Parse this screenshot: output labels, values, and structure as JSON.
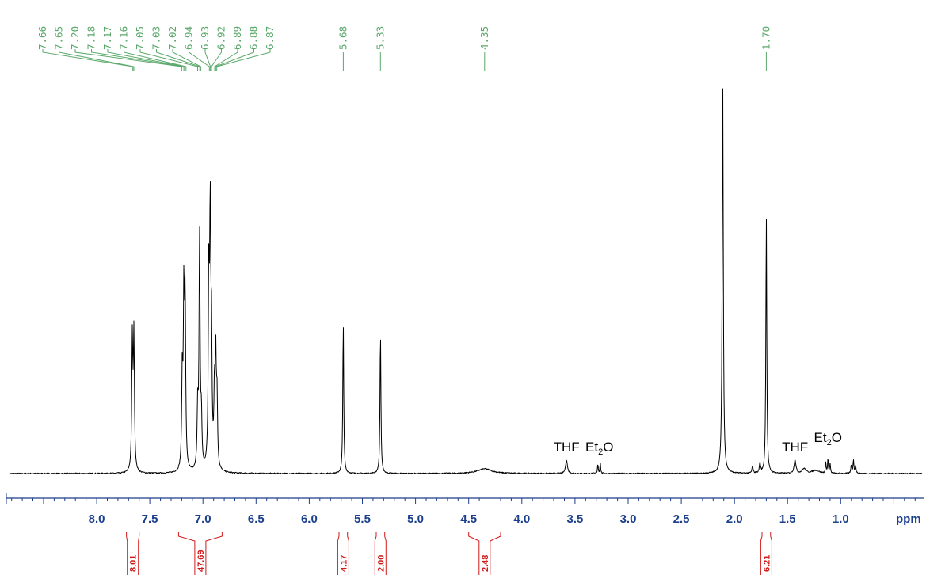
{
  "chart_data": {
    "type": "line",
    "x_unit": "ppm",
    "x_reversed": true,
    "xlim": [
      8.85,
      0.22
    ],
    "ticks": [
      8.0,
      7.5,
      7.0,
      6.5,
      6.0,
      5.5,
      5.0,
      4.5,
      4.0,
      3.5,
      3.0,
      2.5,
      2.0,
      1.5,
      1.0
    ],
    "tick_labels": [
      "8.0",
      "7.5",
      "7.0",
      "6.5",
      "6.0",
      "5.5",
      "5.0",
      "4.5",
      "4.0",
      "3.5",
      "3.0",
      "2.5",
      "2.0",
      "1.5",
      "1.0"
    ],
    "peak_labels": [
      "7.66",
      "7.65",
      "7.20",
      "7.18",
      "7.17",
      "7.16",
      "7.05",
      "7.03",
      "7.02",
      "6.94",
      "6.93",
      "6.92",
      "6.89",
      "6.88",
      "6.87",
      "5.68",
      "5.33",
      "4.35",
      "1.70"
    ],
    "peaks": [
      {
        "ppm": 7.665,
        "height": 0.33,
        "width": 0.006
      },
      {
        "ppm": 7.65,
        "height": 0.34,
        "width": 0.006
      },
      {
        "ppm": 7.195,
        "height": 0.23,
        "width": 0.006
      },
      {
        "ppm": 7.18,
        "height": 0.42,
        "width": 0.006
      },
      {
        "ppm": 7.168,
        "height": 0.41,
        "width": 0.006
      },
      {
        "ppm": 7.05,
        "height": 0.15,
        "width": 0.006
      },
      {
        "ppm": 7.032,
        "height": 0.59,
        "width": 0.006
      },
      {
        "ppm": 7.015,
        "height": 0.12,
        "width": 0.006
      },
      {
        "ppm": 6.945,
        "height": 0.47,
        "width": 0.006
      },
      {
        "ppm": 6.932,
        "height": 0.6,
        "width": 0.006
      },
      {
        "ppm": 6.92,
        "height": 0.3,
        "width": 0.006
      },
      {
        "ppm": 6.892,
        "height": 0.18,
        "width": 0.006
      },
      {
        "ppm": 6.88,
        "height": 0.27,
        "width": 0.006
      },
      {
        "ppm": 6.868,
        "height": 0.17,
        "width": 0.006
      },
      {
        "ppm": 5.68,
        "height": 0.385,
        "width": 0.005
      },
      {
        "ppm": 5.33,
        "height": 0.36,
        "width": 0.005
      },
      {
        "ppm": 4.35,
        "height": 0.012,
        "width": 0.08
      },
      {
        "ppm": 3.58,
        "height": 0.035,
        "width": 0.01
      },
      {
        "ppm": 3.285,
        "height": 0.025,
        "width": 0.004
      },
      {
        "ppm": 3.262,
        "height": 0.028,
        "width": 0.004
      },
      {
        "ppm": 2.11,
        "height": 0.99,
        "width": 0.006
      },
      {
        "ppm": 1.83,
        "height": 0.018,
        "width": 0.006
      },
      {
        "ppm": 1.76,
        "height": 0.026,
        "width": 0.006
      },
      {
        "ppm": 1.7,
        "height": 0.655,
        "width": 0.005
      },
      {
        "ppm": 1.43,
        "height": 0.035,
        "width": 0.01
      },
      {
        "ppm": 1.345,
        "height": 0.012,
        "width": 0.02
      },
      {
        "ppm": 1.235,
        "height": 0.008,
        "width": 0.04
      },
      {
        "ppm": 1.14,
        "height": 0.028,
        "width": 0.004
      },
      {
        "ppm": 1.12,
        "height": 0.038,
        "width": 0.004
      },
      {
        "ppm": 1.1,
        "height": 0.025,
        "width": 0.004
      },
      {
        "ppm": 0.9,
        "height": 0.022,
        "width": 0.005
      },
      {
        "ppm": 0.88,
        "height": 0.033,
        "width": 0.005
      },
      {
        "ppm": 0.86,
        "height": 0.018,
        "width": 0.005
      }
    ],
    "integrals": [
      {
        "range": [
          7.72,
          7.6
        ],
        "value": "8.01"
      },
      {
        "range": [
          7.23,
          6.82
        ],
        "value": "47.69"
      },
      {
        "range": [
          5.72,
          5.64
        ],
        "value": "4.17"
      },
      {
        "range": [
          5.37,
          5.29
        ],
        "value": "2.00"
      },
      {
        "range": [
          4.5,
          4.2
        ],
        "value": "2.48"
      },
      {
        "range": [
          1.74,
          1.66
        ],
        "value": "6.21"
      }
    ],
    "annotations": [
      {
        "ppm": 3.58,
        "main": "THF",
        "sub": ""
      },
      {
        "ppm": 3.27,
        "main": "Et",
        "sub": "2",
        "tail": "O"
      },
      {
        "ppm": 1.43,
        "main": "THF",
        "sub": ""
      },
      {
        "ppm": 1.12,
        "main": "Et",
        "sub": "2",
        "tail": "O"
      }
    ],
    "colors": {
      "spectrum": "#000000",
      "axis": "#1c3f8c",
      "peak_labels": "#5aa86a",
      "integrals": "#d11a1a"
    }
  }
}
